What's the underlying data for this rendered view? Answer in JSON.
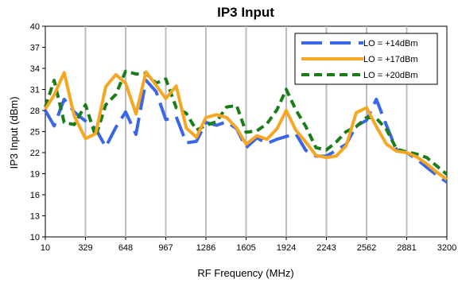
{
  "chart_data": {
    "type": "line",
    "title": "IP3 Input",
    "xlabel": "RF Frequency (MHz)",
    "ylabel": "IP3 Input (dBm)",
    "xlim": [
      10,
      3200
    ],
    "ylim": [
      10,
      40
    ],
    "xticks": [
      10,
      329,
      648,
      967,
      1286,
      1605,
      1924,
      2243,
      2562,
      2881,
      3200
    ],
    "yticks": [
      10,
      13,
      16,
      19,
      22,
      25,
      28,
      31,
      34,
      37,
      40
    ],
    "grid": "vertical",
    "legend_position": "top-right",
    "series": [
      {
        "name": "LO = +14dBm",
        "color": "#3a66e8",
        "dash": "long-dash",
        "x": [
          10,
          80,
          160,
          240,
          329,
          410,
          490,
          570,
          648,
          730,
          810,
          890,
          967,
          1050,
          1130,
          1210,
          1286,
          1370,
          1450,
          1530,
          1605,
          1690,
          1770,
          1850,
          1924,
          2000,
          2080,
          2160,
          2243,
          2320,
          2400,
          2480,
          2562,
          2640,
          2720,
          2800,
          2881,
          2960,
          3040,
          3120,
          3200
        ],
        "y": [
          28.0,
          25.8,
          29.6,
          27.8,
          26.5,
          25.4,
          22.8,
          25.6,
          27.8,
          24.6,
          32.3,
          30.7,
          26.7,
          27.1,
          23.4,
          23.6,
          26.3,
          25.9,
          26.4,
          25.4,
          22.7,
          24.1,
          23.3,
          23.9,
          24.3,
          24.7,
          22.3,
          21.5,
          21.5,
          22.3,
          23.2,
          25.8,
          26.6,
          29.6,
          25.9,
          22.4,
          22.0,
          21.1,
          19.9,
          18.8,
          17.8
        ]
      },
      {
        "name": "LO = +17dBm",
        "color": "#f5a623",
        "dash": "solid",
        "x": [
          10,
          80,
          160,
          240,
          329,
          410,
          490,
          570,
          648,
          730,
          810,
          890,
          967,
          1050,
          1130,
          1210,
          1286,
          1370,
          1450,
          1530,
          1605,
          1690,
          1770,
          1850,
          1924,
          2000,
          2080,
          2160,
          2243,
          2320,
          2400,
          2480,
          2562,
          2640,
          2720,
          2800,
          2881,
          2960,
          3040,
          3120,
          3200
        ],
        "y": [
          28.2,
          30.2,
          33.4,
          27.2,
          24.0,
          24.7,
          31.4,
          33.1,
          31.9,
          27.5,
          33.5,
          31.6,
          29.7,
          31.5,
          25.5,
          24.2,
          27.0,
          27.4,
          27.0,
          25.5,
          23.2,
          24.4,
          23.9,
          25.4,
          28.0,
          25.2,
          23.5,
          21.6,
          21.3,
          21.5,
          23.0,
          27.7,
          28.4,
          25.7,
          23.2,
          22.2,
          22.0,
          21.4,
          20.4,
          19.2,
          18.2
        ]
      },
      {
        "name": "LO = +20dBm",
        "color": "#1a7d1a",
        "dash": "short-dash",
        "x": [
          10,
          80,
          160,
          240,
          329,
          410,
          490,
          570,
          648,
          730,
          810,
          890,
          967,
          1050,
          1130,
          1210,
          1286,
          1370,
          1450,
          1530,
          1605,
          1690,
          1770,
          1850,
          1924,
          2000,
          2080,
          2160,
          2243,
          2320,
          2400,
          2480,
          2562,
          2640,
          2720,
          2800,
          2881,
          2960,
          3040,
          3120,
          3200
        ],
        "y": [
          28.5,
          32.3,
          26.3,
          26.0,
          28.8,
          24.3,
          28.8,
          30.3,
          33.6,
          33.2,
          33.3,
          31.9,
          32.5,
          28.4,
          27.6,
          25.2,
          25.9,
          26.4,
          28.5,
          28.7,
          24.9,
          25.1,
          26.1,
          28.1,
          31.0,
          28.1,
          25.7,
          22.7,
          22.4,
          23.5,
          25.0,
          25.7,
          27.0,
          26.9,
          25.3,
          22.5,
          22.1,
          21.8,
          21.3,
          20.1,
          18.9
        ]
      }
    ]
  }
}
